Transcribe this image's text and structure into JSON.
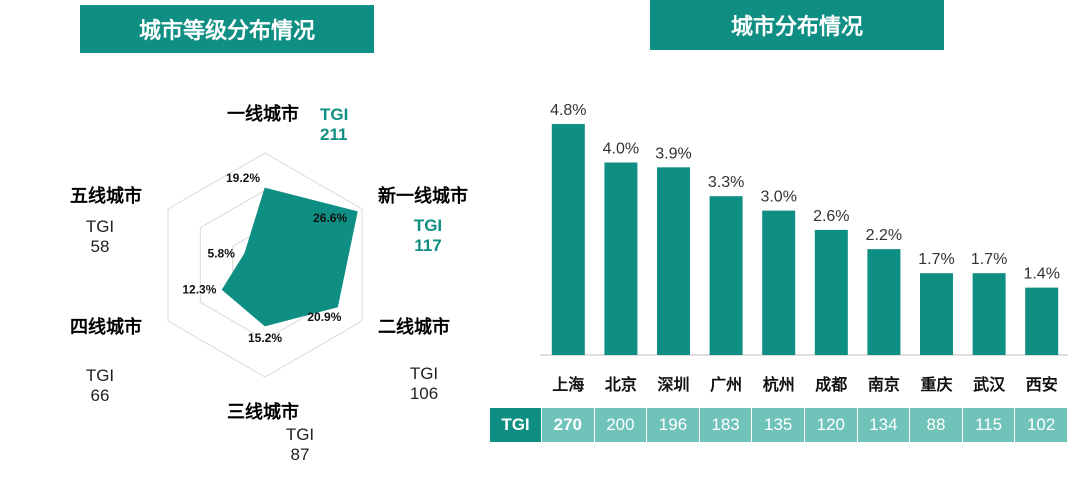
{
  "left_title": "城市等级分布情况",
  "right_title": "城市分布情况",
  "colors": {
    "accent": "#0f8f83",
    "light": "#6fc3b8",
    "grid": "#d9d9d9"
  },
  "chart_data": [
    {
      "type": "radar",
      "title": "城市等级分布情况",
      "axes": [
        "一线城市",
        "新一线城市",
        "二线城市",
        "三线城市",
        "四线城市",
        "五线城市"
      ],
      "values": [
        19.2,
        26.6,
        20.9,
        15.2,
        12.3,
        5.8
      ],
      "value_labels": [
        "19.2%",
        "26.6%",
        "20.9%",
        "15.2%",
        "12.3%",
        "5.8%"
      ],
      "tgi_label": "TGI",
      "tgi": [
        "211",
        "117",
        "106",
        "87",
        "66",
        "58"
      ],
      "highlighted_tgi": [
        "一线城市",
        "新一线城市"
      ],
      "range": [
        0,
        28
      ]
    },
    {
      "type": "bar",
      "title": "城市分布情况",
      "categories": [
        "上海",
        "北京",
        "深圳",
        "广州",
        "杭州",
        "成都",
        "南京",
        "重庆",
        "武汉",
        "西安"
      ],
      "values": [
        4.8,
        4.0,
        3.9,
        3.3,
        3.0,
        2.6,
        2.2,
        1.7,
        1.7,
        1.4
      ],
      "value_labels": [
        "4.8%",
        "4.0%",
        "3.9%",
        "3.3%",
        "3.0%",
        "2.6%",
        "2.2%",
        "1.7%",
        "1.7%",
        "1.4%"
      ],
      "tgi_label": "TGI",
      "tgi": [
        "270",
        "200",
        "196",
        "183",
        "135",
        "120",
        "134",
        "88",
        "115",
        "102"
      ],
      "ylim": [
        0,
        4.8
      ]
    }
  ]
}
